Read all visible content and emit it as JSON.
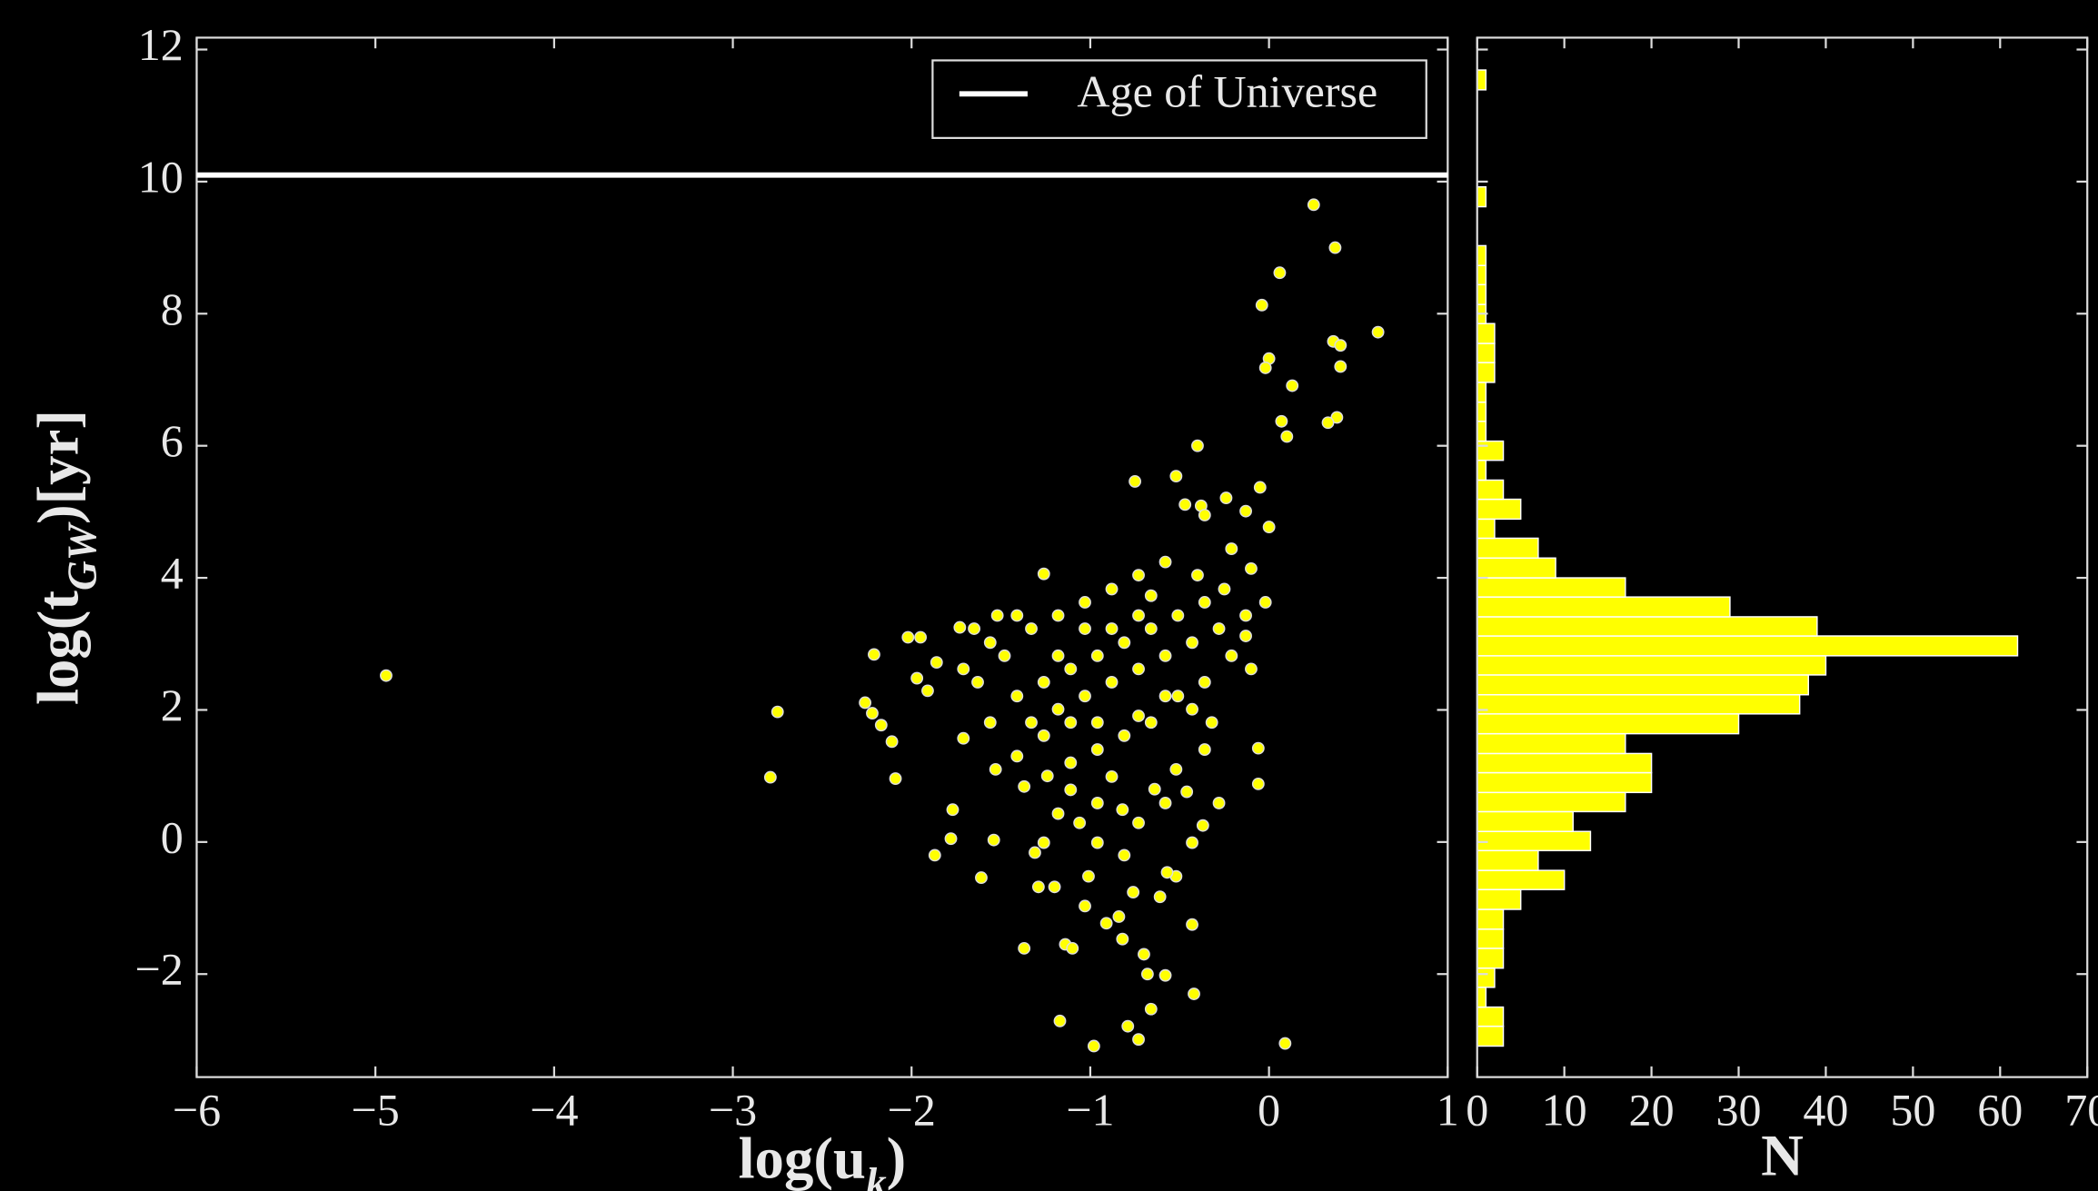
{
  "chart_data": [
    {
      "type": "scatter",
      "color": "#ffff00",
      "edgecolor": "#dddddd",
      "xlabel": {
        "main": "log(u",
        "sub": "k",
        "end": ")"
      },
      "ylabel": {
        "main": "log(t",
        "sub": "GW",
        "end": ")[yr]"
      },
      "xlim": [
        -6,
        1
      ],
      "ylim": [
        -3.56,
        12.18
      ],
      "xticks": [
        {
          "value": -6,
          "label": "−6"
        },
        {
          "value": -5,
          "label": "−5"
        },
        {
          "value": -4,
          "label": "−4"
        },
        {
          "value": -3,
          "label": "−3"
        },
        {
          "value": -2,
          "label": "−2"
        },
        {
          "value": -1,
          "label": "−1"
        },
        0,
        1
      ],
      "yticks": [
        {
          "value": -2,
          "label": "−2"
        },
        0,
        2,
        4,
        6,
        8,
        10,
        12
      ],
      "hline": {
        "name": "Age of Universe",
        "value": 10.1,
        "color": "#ffffff"
      },
      "legend": "upper right",
      "x": [
        -4.94,
        -2.75,
        -2.79,
        0.25,
        0.37,
        0.06,
        -0.04,
        0.61,
        0.36,
        0.4,
        0.0,
        -0.02,
        0.4,
        0.13,
        0.07,
        0.1,
        0.38,
        0.33,
        -0.4,
        -0.75,
        -0.52,
        -0.05,
        -0.24,
        -0.47,
        -0.38,
        -0.13,
        0.0,
        -0.36,
        -0.98,
        0.09,
        -1.17,
        -0.73,
        -0.79,
        -0.66,
        -0.42,
        -1.37,
        -1.14,
        -1.1,
        -0.7,
        -0.58,
        -0.68,
        -0.43,
        -0.91,
        -0.84,
        -0.82,
        -0.76,
        -1.29,
        -1.2,
        -1.61,
        -1.87,
        -1.78,
        -1.77,
        -1.54,
        -2.09,
        -2.11,
        -2.17,
        -2.22,
        -2.26,
        -2.21,
        -1.97,
        -1.91,
        -2.02,
        -1.95,
        -1.73,
        -1.65,
        -1.26,
        -0.06,
        -0.06,
        -0.37,
        -0.28,
        -0.52,
        -0.57,
        -0.61,
        -1.03,
        -1.01,
        -1.31,
        -1.26,
        -1.06,
        -0.96,
        -0.96,
        -0.82,
        -1.18,
        -1.37,
        -1.24,
        -1.11,
        -0.52,
        -0.64,
        -0.46,
        -0.36,
        -0.32,
        -0.43,
        -1.41,
        -1.53,
        -1.71,
        -1.56,
        -1.41,
        -1.26,
        -1.11,
        -0.96,
        -0.81,
        -0.66,
        -0.51,
        -0.36,
        -1.33,
        -1.18,
        -1.03,
        -0.88,
        -0.73,
        -0.58,
        -0.43,
        -0.28,
        -1.48,
        -1.33,
        -1.18,
        -1.03,
        -0.88,
        -0.73,
        -0.58,
        -1.71,
        -1.56,
        -1.41,
        -1.03,
        -0.88,
        -0.73,
        -0.96,
        -0.81,
        -0.66,
        -0.51,
        -0.36,
        -0.21,
        -0.13,
        -0.25,
        -0.1,
        -0.02,
        -0.21,
        -0.4,
        -0.66,
        -1.11,
        -1.26,
        -0.96,
        -0.73,
        -0.58,
        -0.88,
        -1.11,
        -0.73,
        -0.58,
        -0.43,
        -0.81,
        -1.86,
        -1.63,
        -1.52,
        -1.18,
        -0.1,
        -0.13
      ],
      "y": [
        2.52,
        1.97,
        0.98,
        9.65,
        9.0,
        8.62,
        8.13,
        7.72,
        7.58,
        7.52,
        7.32,
        7.18,
        7.2,
        6.91,
        6.37,
        6.14,
        6.43,
        6.35,
        6.0,
        5.46,
        5.54,
        5.37,
        5.21,
        5.11,
        5.09,
        5.01,
        4.77,
        4.95,
        -3.09,
        -3.05,
        -2.71,
        -2.99,
        -2.79,
        -2.53,
        -2.3,
        -1.61,
        -1.55,
        -1.61,
        -1.7,
        -2.02,
        -2.0,
        -1.25,
        -1.23,
        -1.13,
        -1.47,
        -0.76,
        -0.68,
        -0.68,
        -0.54,
        -0.2,
        0.05,
        0.49,
        0.03,
        0.96,
        1.52,
        1.77,
        1.95,
        2.11,
        2.84,
        2.48,
        2.29,
        3.1,
        3.1,
        3.25,
        3.23,
        4.06,
        0.88,
        1.42,
        0.25,
        0.59,
        -0.52,
        -0.46,
        -0.83,
        -0.97,
        -0.52,
        -0.16,
        -0.01,
        0.29,
        -0.01,
        0.59,
        0.49,
        0.43,
        0.84,
        1.0,
        1.2,
        1.1,
        0.8,
        0.76,
        1.4,
        1.81,
        2.01,
        1.3,
        1.1,
        1.57,
        1.81,
        2.21,
        2.42,
        2.62,
        2.82,
        3.02,
        3.23,
        3.43,
        3.63,
        1.81,
        2.01,
        2.21,
        2.42,
        2.62,
        2.82,
        3.02,
        3.23,
        2.82,
        3.23,
        3.43,
        3.63,
        3.83,
        4.04,
        4.24,
        2.62,
        3.02,
        3.43,
        3.23,
        3.23,
        3.43,
        1.81,
        1.61,
        1.81,
        2.21,
        2.42,
        2.82,
        3.43,
        3.83,
        4.14,
        3.63,
        4.44,
        4.04,
        3.73,
        1.81,
        1.61,
        1.4,
        1.91,
        2.21,
        0.99,
        0.79,
        0.29,
        0.59,
        -0.01,
        -0.2,
        2.72,
        2.42,
        3.43,
        2.82,
        2.62,
        3.12
      ]
    },
    {
      "type": "histogram",
      "orientation": "horizontal",
      "color": "#ffff00",
      "edgecolor": "#ffffff",
      "xlabel": "N",
      "xlim": [
        0,
        70
      ],
      "ylim": [
        -3.56,
        12.18
      ],
      "xticks": [
        0,
        10,
        20,
        30,
        40,
        50,
        60,
        70
      ],
      "bins": [
        -3.09,
        -2.79,
        -2.5,
        -2.2,
        -1.91,
        -1.61,
        -1.32,
        -1.02,
        -0.72,
        -0.43,
        -0.13,
        0.16,
        0.46,
        0.75,
        1.05,
        1.34,
        1.64,
        1.94,
        2.23,
        2.53,
        2.82,
        3.12,
        3.41,
        3.71,
        4.0,
        4.3,
        4.6,
        4.89,
        5.19,
        5.48,
        5.78,
        6.07,
        6.37,
        6.66,
        6.96,
        7.26,
        7.55,
        7.85,
        8.14,
        8.44,
        8.73,
        9.03,
        9.32,
        9.62,
        9.92,
        10.21,
        10.51,
        10.8,
        11.1,
        11.39,
        11.69
      ],
      "counts": [
        3,
        3,
        1,
        2,
        3,
        3,
        3,
        5,
        10,
        7,
        13,
        11,
        17,
        20,
        20,
        17,
        30,
        37,
        38,
        40,
        62,
        39,
        29,
        17,
        9,
        7,
        2,
        5,
        3,
        1,
        3,
        1,
        1,
        1,
        2,
        2,
        2,
        1,
        1,
        1,
        1,
        0,
        0,
        1,
        0,
        0,
        0,
        0,
        0,
        1
      ]
    }
  ]
}
